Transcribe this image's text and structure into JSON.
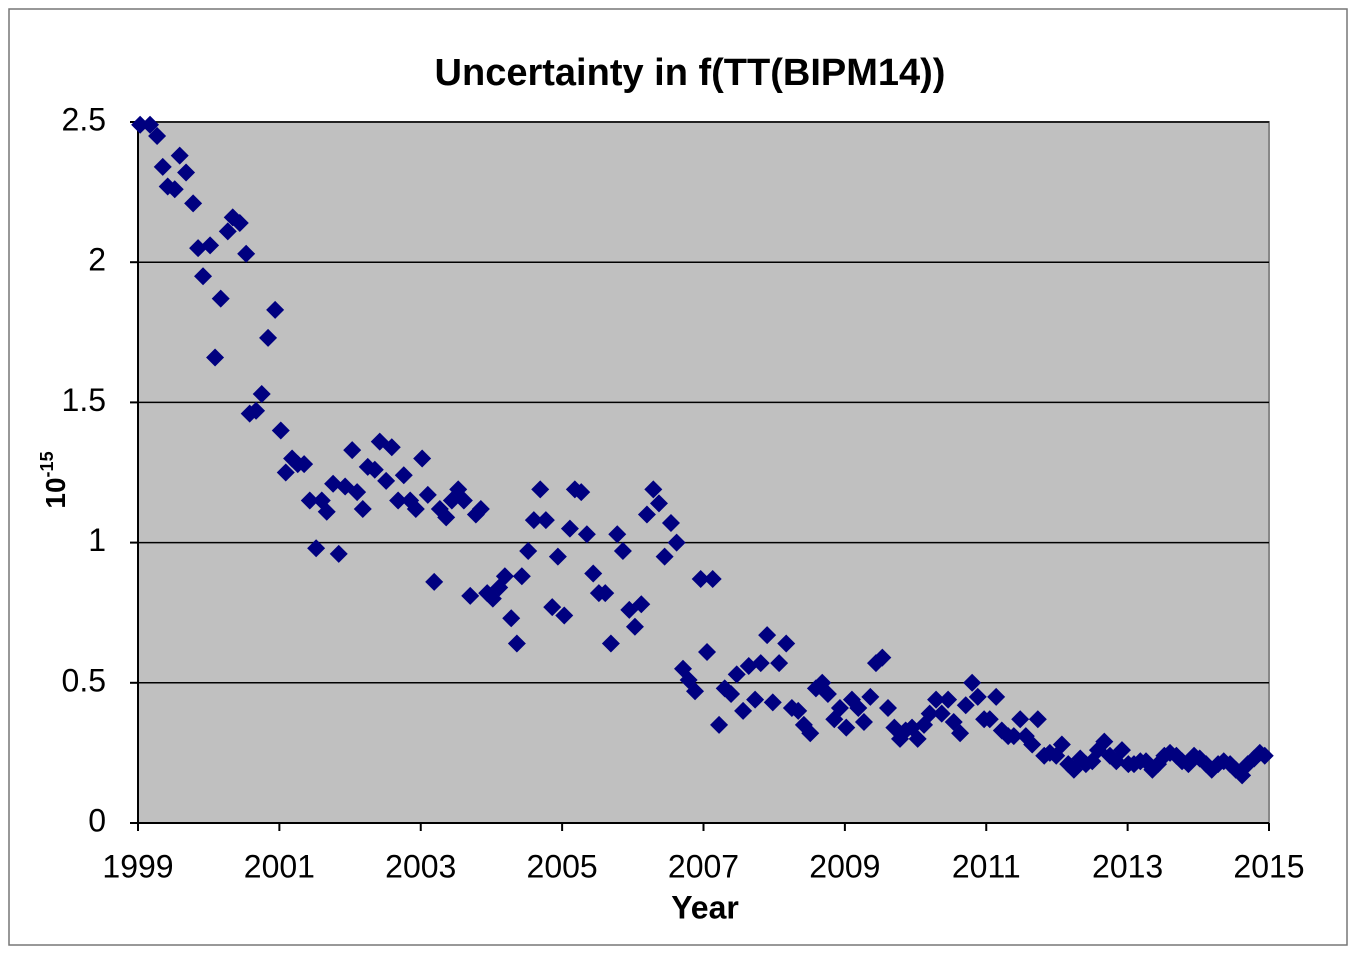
{
  "chart_data": {
    "type": "scatter",
    "title": "Uncertainty  in  f(TT(BIPM14))",
    "xlabel": "Year",
    "ylabel": "10",
    "ylabel_exponent": "-15",
    "xlim": [
      1999,
      2015
    ],
    "xticks": [
      1999,
      2001,
      2003,
      2005,
      2007,
      2009,
      2011,
      2013,
      2015
    ],
    "ylim": [
      0,
      2.5
    ],
    "yticks": [
      0,
      0.5,
      1,
      1.5,
      2,
      2.5
    ],
    "grid": true,
    "plot_background": "#c0c0c0",
    "series": [
      {
        "color": "#000080",
        "x": [
          1999.03,
          1999.17,
          1999.27,
          1999.35,
          1999.42,
          1999.52,
          1999.59,
          1999.68,
          1999.78,
          1999.85,
          1999.92,
          2000.02,
          2000.09,
          2000.17,
          2000.27,
          2000.34,
          2000.44,
          2000.53,
          2000.58,
          2000.67,
          2000.75,
          2000.84,
          2000.94,
          2001.02,
          2001.09,
          2001.18,
          2001.26,
          2001.35,
          2001.43,
          2001.52,
          2001.6,
          2001.67,
          2001.76,
          2001.84,
          2001.93,
          2002.03,
          2002.1,
          2002.18,
          2002.25,
          2002.35,
          2002.42,
          2002.51,
          2002.59,
          2002.68,
          2002.76,
          2002.85,
          2002.93,
          2003.02,
          2003.1,
          2003.19,
          2003.27,
          2003.36,
          2003.44,
          2003.53,
          2003.61,
          2003.7,
          2003.78,
          2003.85,
          2003.94,
          2004.02,
          2004.11,
          2004.19,
          2004.28,
          2004.36,
          2004.43,
          2004.52,
          2004.6,
          2004.69,
          2004.77,
          2004.86,
          2004.94,
          2005.03,
          2005.11,
          2005.18,
          2005.27,
          2005.35,
          2005.44,
          2005.52,
          2005.61,
          2005.69,
          2005.78,
          2005.86,
          2005.95,
          2006.03,
          2006.12,
          2006.2,
          2006.29,
          2006.37,
          2006.45,
          2006.54,
          2006.62,
          2006.71,
          2006.79,
          2006.88,
          2006.96,
          2007.05,
          2007.13,
          2007.22,
          2007.3,
          2007.39,
          2007.47,
          2007.56,
          2007.64,
          2007.73,
          2007.81,
          2007.9,
          2007.98,
          2008.07,
          2008.17,
          2008.25,
          2008.34,
          2008.42,
          2008.51,
          2008.59,
          2008.68,
          2008.76,
          2008.85,
          2008.93,
          2009.02,
          2009.1,
          2009.19,
          2009.27,
          2009.36,
          2009.44,
          2009.53,
          2009.61,
          2009.7,
          2009.78,
          2009.86,
          2009.95,
          2010.03,
          2010.12,
          2010.2,
          2010.29,
          2010.37,
          2010.46,
          2010.54,
          2010.63,
          2010.71,
          2010.8,
          2010.88,
          2010.97,
          2011.05,
          2011.14,
          2011.22,
          2011.31,
          2011.39,
          2011.48,
          2011.56,
          2011.65,
          2011.73,
          2011.82,
          2011.9,
          2011.99,
          2012.07,
          2012.16,
          2012.24,
          2012.33,
          2012.41,
          2012.5,
          2012.58,
          2012.67,
          2012.75,
          2012.84,
          2012.92,
          2013.01,
          2013.09,
          2013.18,
          2013.26,
          2013.35,
          2013.43,
          2013.52,
          2013.6,
          2013.69,
          2013.77,
          2013.86,
          2013.94,
          2014.02,
          2014.11,
          2014.19,
          2014.28,
          2014.36,
          2014.45,
          2014.53,
          2014.62,
          2014.7,
          2014.79,
          2014.87,
          2014.94
        ],
        "values": [
          2.49,
          2.49,
          2.45,
          2.34,
          2.27,
          2.26,
          2.38,
          2.32,
          2.21,
          2.05,
          1.95,
          2.06,
          1.66,
          1.87,
          2.11,
          2.16,
          2.14,
          2.03,
          1.46,
          1.47,
          1.53,
          1.73,
          1.83,
          1.4,
          1.25,
          1.3,
          1.28,
          1.28,
          1.15,
          0.98,
          1.15,
          1.11,
          1.21,
          0.96,
          1.2,
          1.33,
          1.18,
          1.12,
          1.27,
          1.26,
          1.36,
          1.22,
          1.34,
          1.15,
          1.24,
          1.15,
          1.12,
          1.3,
          1.17,
          0.86,
          1.12,
          1.09,
          1.15,
          1.19,
          1.15,
          0.81,
          1.1,
          1.12,
          0.82,
          0.8,
          0.84,
          0.88,
          0.73,
          0.64,
          0.88,
          0.97,
          1.08,
          1.19,
          1.08,
          0.77,
          0.95,
          0.74,
          1.05,
          1.19,
          1.18,
          1.03,
          0.89,
          0.82,
          0.82,
          0.64,
          1.03,
          0.97,
          0.76,
          0.7,
          0.78,
          1.1,
          1.19,
          1.14,
          0.95,
          1.07,
          1.0,
          0.55,
          0.51,
          0.47,
          0.87,
          0.61,
          0.87,
          0.35,
          0.48,
          0.46,
          0.53,
          0.4,
          0.56,
          0.44,
          0.57,
          0.67,
          0.43,
          0.57,
          0.64,
          0.41,
          0.4,
          0.35,
          0.32,
          0.48,
          0.5,
          0.46,
          0.37,
          0.41,
          0.34,
          0.44,
          0.41,
          0.36,
          0.45,
          0.57,
          0.59,
          0.41,
          0.34,
          0.3,
          0.33,
          0.34,
          0.3,
          0.35,
          0.39,
          0.44,
          0.39,
          0.44,
          0.36,
          0.32,
          0.42,
          0.5,
          0.45,
          0.37,
          0.37,
          0.45,
          0.33,
          0.31,
          0.31,
          0.37,
          0.31,
          0.28,
          0.37,
          0.24,
          0.25,
          0.24,
          0.28,
          0.21,
          0.19,
          0.23,
          0.21,
          0.22,
          0.26,
          0.29,
          0.24,
          0.22,
          0.26,
          0.21,
          0.21,
          0.22,
          0.22,
          0.19,
          0.21,
          0.24,
          0.25,
          0.24,
          0.22,
          0.21,
          0.24,
          0.23,
          0.21,
          0.19,
          0.21,
          0.22,
          0.21,
          0.19,
          0.17,
          0.21,
          0.23,
          0.25,
          0.24
        ]
      }
    ]
  }
}
